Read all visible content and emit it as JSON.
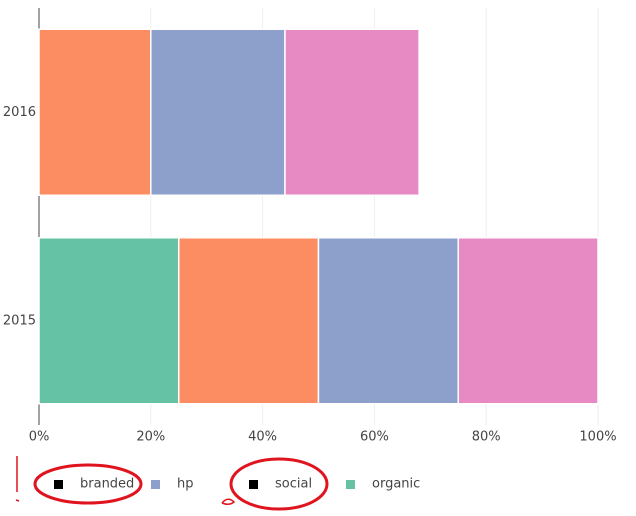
{
  "chart_data": {
    "type": "stacked-bar-horizontal",
    "categories": [
      "2016",
      "2015"
    ],
    "series": [
      {
        "name": "organic",
        "color": "#66c2a5",
        "legend_color": "#66c2a5",
        "values": [
          0,
          25
        ]
      },
      {
        "name": "branded",
        "color": "#fc8d62",
        "legend_color": "#000000",
        "values": [
          20,
          25
        ]
      },
      {
        "name": "hp",
        "color": "#8da0cb",
        "legend_color": "#8da0cb",
        "values": [
          24,
          25
        ]
      },
      {
        "name": "social",
        "color": "#e78ac3",
        "legend_color": "#000000",
        "values": [
          24,
          25
        ]
      }
    ],
    "legend_order": [
      1,
      2,
      3,
      0
    ],
    "xlim": [
      0,
      100
    ],
    "xticks": [
      {
        "value": 0,
        "label": "0%"
      },
      {
        "value": 20,
        "label": "20%"
      },
      {
        "value": 40,
        "label": "40%"
      },
      {
        "value": 60,
        "label": "60%"
      },
      {
        "value": 80,
        "label": "80%"
      },
      {
        "value": 100,
        "label": "100%"
      }
    ],
    "grid": true
  }
}
